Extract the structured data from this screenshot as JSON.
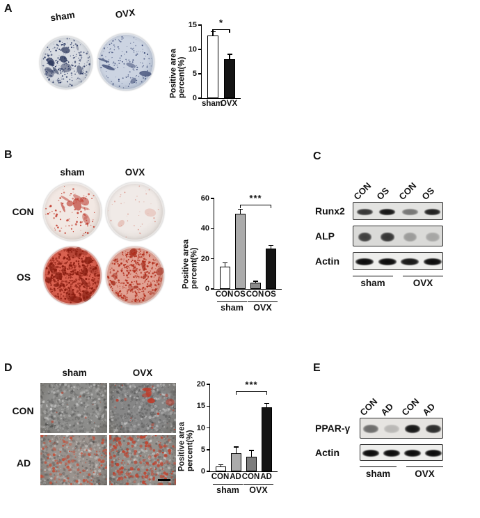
{
  "figure": {
    "background": "#ffffff"
  },
  "panels": {
    "a": {
      "label": "A",
      "dish_labels": [
        "sham",
        "OVX"
      ],
      "dishes": [
        {
          "name": "sham",
          "bg": "#d8dce2",
          "edge": "#bfc6d0",
          "dot_color": "#26345f",
          "dots": 240,
          "rmin": 0.4,
          "rmax": 1.3,
          "blobs": 10,
          "blob_color": "#1d2a50",
          "blob_spread": 0.8,
          "seed": 11
        },
        {
          "name": "OVX",
          "bg": "#ccd4e2",
          "edge": "#a9b6cc",
          "dot_color": "#2c3c6c",
          "dots": 150,
          "rmin": 0.4,
          "rmax": 1.1,
          "blobs": 5,
          "blob_color": "#243361",
          "blob_spread": 0.8,
          "seed": 23
        }
      ]
    },
    "b": {
      "label": "B",
      "col_labels": [
        "sham",
        "OVX"
      ],
      "row_labels": [
        "CON",
        "OS"
      ],
      "dishes": [
        {
          "name": "sham-CON",
          "bg": "#f2e8e3",
          "edge": "#dcd2cb",
          "dot_color": "#c0392b",
          "dots": 90,
          "rmin": 0.5,
          "rmax": 1.6,
          "blobs": 9,
          "blob_color": "#b93226",
          "blob_spread": 0.55,
          "seed": 31
        },
        {
          "name": "OVX-CON",
          "bg": "#f0eae7",
          "edge": "#dad4cf",
          "dot_color": "#d99084",
          "dots": 35,
          "rmin": 0.4,
          "rmax": 1.1,
          "blobs": 2,
          "blob_color": "#e0a79c",
          "blob_spread": 0.7,
          "seed": 32
        },
        {
          "name": "sham-OS",
          "bg": "#da6150",
          "edge": "#c04a39",
          "dot_color": "#8a1d10",
          "dots": 520,
          "rmin": 0.5,
          "rmax": 1.7,
          "blobs": 18,
          "blob_color": "#7a160b",
          "blob_spread": 0.9,
          "seed": 33
        },
        {
          "name": "OVX-OS",
          "bg": "#e2a294",
          "edge": "#cc8878",
          "dot_color": "#b02a18",
          "dots": 430,
          "rmin": 0.5,
          "rmax": 1.5,
          "blobs": 10,
          "blob_color": "#9c2212",
          "blob_spread": 0.9,
          "seed": 34
        }
      ]
    },
    "c": {
      "label": "C",
      "lane_labels": [
        "CON",
        "OS",
        "CON",
        "OS"
      ],
      "group_labels": [
        "sham",
        "OVX"
      ],
      "rows": [
        {
          "name": "Runx2",
          "bg": "#e3e3e1",
          "h": 26,
          "band_h": 9,
          "band_w": 0.72,
          "bands": [
            0.8,
            0.95,
            0.5,
            0.9
          ]
        },
        {
          "name": "ALP",
          "bg": "#dadad8",
          "h": 30,
          "band_h": 13,
          "band_w": 0.6,
          "bands": [
            0.75,
            0.8,
            0.3,
            0.25
          ]
        },
        {
          "name": "Actin",
          "bg": "#eeeeec",
          "h": 26,
          "band_h": 10,
          "band_w": 0.8,
          "bands": [
            1,
            1,
            0.95,
            1
          ]
        }
      ]
    },
    "d": {
      "label": "D",
      "col_labels": [
        "sham",
        "OVX"
      ],
      "row_labels": [
        "CON",
        "AD"
      ],
      "images": [
        {
          "name": "sham-CON",
          "bg": "#8d8d8b",
          "seed": 41,
          "dark_dots": 380,
          "light_dots": 260,
          "red_dots": 12,
          "red_color": "#b24a38",
          "red_rmax": 1.4,
          "patches": 0
        },
        {
          "name": "OVX-CON",
          "bg": "#868686",
          "seed": 42,
          "dark_dots": 380,
          "light_dots": 240,
          "red_dots": 22,
          "red_color": "#c03a28",
          "red_rmax": 1.8,
          "patches": 5
        },
        {
          "name": "sham-AD",
          "bg": "#9a938e",
          "seed": 43,
          "dark_dots": 300,
          "light_dots": 220,
          "red_dots": 150,
          "red_color": "#c2503a",
          "red_rmax": 2.0,
          "patches": 0
        },
        {
          "name": "OVX-AD",
          "bg": "#94908b",
          "seed": 44,
          "dark_dots": 300,
          "light_dots": 220,
          "red_dots": 210,
          "red_color": "#bf4430",
          "red_rmax": 2.2,
          "patches": 0,
          "scale_bar": true
        }
      ]
    },
    "e": {
      "label": "E",
      "lane_labels": [
        "CON",
        "AD",
        "CON",
        "AD"
      ],
      "group_labels": [
        "sham",
        "OVX"
      ],
      "rows": [
        {
          "name": "PPAR-γ",
          "bg": "#e6e4e1",
          "h": 30,
          "band_h": 12,
          "band_w": 0.75,
          "bands": [
            0.55,
            0.2,
            0.95,
            0.85
          ]
        },
        {
          "name": "Actin",
          "bg": "#eeeeec",
          "h": 24,
          "band_h": 10,
          "band_w": 0.8,
          "bands": [
            1,
            1,
            1,
            1
          ]
        }
      ]
    }
  },
  "chart_data": [
    {
      "id": "A",
      "type": "bar",
      "categories": [
        "sham",
        "OVX"
      ],
      "values": [
        12.8,
        8.0
      ],
      "errors": [
        0.8,
        0.9
      ],
      "bar_colors": [
        "#ffffff",
        "#141414"
      ],
      "title": "",
      "xlabel": "",
      "ylabel": "Positive area percent(%)",
      "ylim": [
        0,
        15
      ],
      "yticks": [
        0,
        5,
        10,
        15
      ],
      "significance": [
        {
          "from": 0,
          "to": 1,
          "label": "*",
          "y": 14.2
        }
      ]
    },
    {
      "id": "B",
      "type": "bar",
      "categories": [
        "CON",
        "OS",
        "CON",
        "OS"
      ],
      "values": [
        15,
        50,
        4,
        27
      ],
      "errors": [
        2,
        2.5,
        0.8,
        1.5
      ],
      "bar_colors": [
        "#ffffff",
        "#ababab",
        "#8a8a8a",
        "#141414"
      ],
      "title": "",
      "xlabel": "",
      "ylabel": "Positive area percent(%)",
      "ylim": [
        0,
        60
      ],
      "yticks": [
        0,
        20,
        40,
        60
      ],
      "group_labels": [
        {
          "label": "sham",
          "span": [
            0,
            1
          ]
        },
        {
          "label": "OVX",
          "span": [
            2,
            3
          ]
        }
      ],
      "significance": [
        {
          "from": 1,
          "to": 3,
          "label": "***",
          "y": 56
        }
      ]
    },
    {
      "id": "D",
      "type": "bar",
      "categories": [
        "CON",
        "AD",
        "CON",
        "AD"
      ],
      "values": [
        1.2,
        4.2,
        3.4,
        14.8
      ],
      "errors": [
        0.2,
        1.3,
        1.3,
        0.7
      ],
      "bar_colors": [
        "#ffffff",
        "#ababab",
        "#7d7d7d",
        "#141414"
      ],
      "title": "",
      "xlabel": "",
      "ylabel": "Positive area percent(%)",
      "ylim": [
        0,
        20
      ],
      "yticks": [
        0,
        5,
        10,
        15,
        20
      ],
      "group_labels": [
        {
          "label": "sham",
          "span": [
            0,
            1
          ]
        },
        {
          "label": "OVX",
          "span": [
            2,
            3
          ]
        }
      ],
      "significance": [
        {
          "from": 1,
          "to": 3,
          "label": "***",
          "y": 18.4
        }
      ]
    }
  ]
}
